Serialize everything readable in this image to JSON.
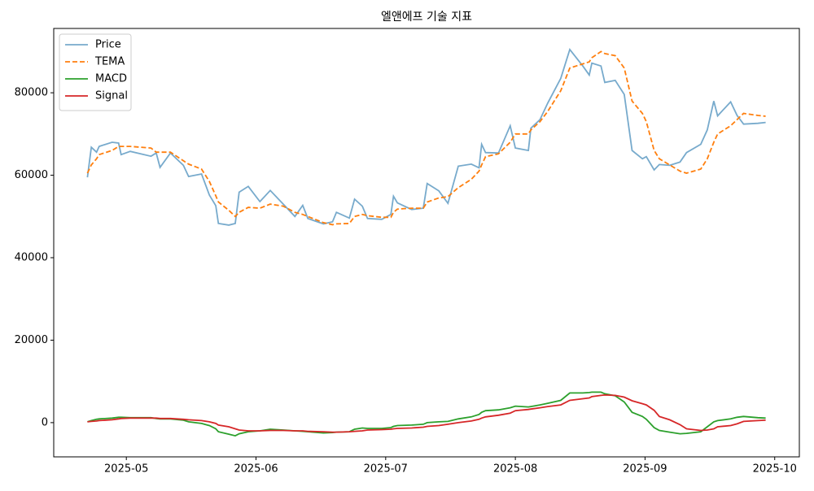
{
  "chart_data": {
    "type": "line",
    "title": "엘앤에프 기술 지표",
    "x": [
      4.7,
      4.73,
      4.77,
      4.79,
      4.89,
      4.94,
      4.96,
      5.03,
      5.19,
      5.23,
      5.26,
      5.34,
      5.44,
      5.48,
      5.58,
      5.64,
      5.69,
      5.71,
      5.79,
      5.84,
      5.87,
      5.94,
      6.03,
      6.11,
      6.21,
      6.3,
      6.36,
      6.4,
      6.52,
      6.59,
      6.62,
      6.72,
      6.76,
      6.82,
      6.86,
      6.97,
      7.04,
      7.06,
      7.09,
      7.2,
      7.29,
      7.32,
      7.41,
      7.48,
      7.56,
      7.66,
      7.72,
      7.74,
      7.77,
      7.87,
      7.96,
      8.0,
      8.1,
      8.12,
      8.19,
      8.25,
      8.35,
      8.42,
      8.52,
      8.57,
      8.59,
      8.66,
      8.69,
      8.77,
      8.84,
      8.9,
      8.98,
      9.01,
      9.07,
      9.11,
      9.19,
      9.27,
      9.32,
      9.43,
      9.48,
      9.53,
      9.56,
      9.66,
      9.71,
      9.76,
      9.87,
      9.93
    ],
    "series": [
      {
        "name": "Price",
        "color": "#77aacc",
        "linestyle": "solid",
        "values": [
          59500,
          66800,
          65600,
          67000,
          68000,
          67800,
          65000,
          65800,
          64600,
          65400,
          61900,
          65400,
          62400,
          59700,
          60300,
          55200,
          52600,
          48300,
          47900,
          48300,
          55900,
          57300,
          53600,
          56300,
          53000,
          50000,
          52700,
          49500,
          48200,
          48700,
          51000,
          49600,
          54200,
          52500,
          49500,
          49300,
          50500,
          54900,
          53300,
          51700,
          52000,
          58000,
          56200,
          53200,
          62200,
          62700,
          61800,
          67500,
          65500,
          65400,
          72000,
          66600,
          66000,
          71400,
          73500,
          77500,
          83500,
          90500,
          86500,
          84300,
          87200,
          86500,
          82500,
          83000,
          79600,
          66000,
          64000,
          64500,
          61300,
          62600,
          62400,
          63200,
          65500,
          67500,
          71000,
          78000,
          74400,
          77800,
          74500,
          72400,
          72600,
          72800
        ]
      },
      {
        "name": "TEMA",
        "color": "#ff7f0e",
        "linestyle": "dashed",
        "values": [
          60500,
          62500,
          64000,
          65000,
          66000,
          67000,
          67000,
          67000,
          66600,
          65600,
          65600,
          65600,
          63500,
          62700,
          61500,
          58500,
          55000,
          53500,
          51500,
          50000,
          51000,
          52200,
          52000,
          53000,
          52500,
          51000,
          50500,
          50000,
          48500,
          48000,
          48200,
          48300,
          50000,
          50500,
          50200,
          49800,
          49800,
          51000,
          51800,
          52000,
          52000,
          53500,
          54500,
          54800,
          57000,
          59000,
          61000,
          62500,
          64500,
          65200,
          68000,
          70000,
          70000,
          71000,
          73000,
          75500,
          80500,
          86000,
          87000,
          87500,
          88500,
          90000,
          89500,
          89000,
          86000,
          78000,
          75000,
          73000,
          66000,
          64000,
          62500,
          61000,
          60500,
          61500,
          64000,
          68000,
          70000,
          72000,
          73500,
          75000,
          74500,
          74300
        ]
      },
      {
        "name": "MACD",
        "color": "#2ca02c",
        "linestyle": "solid",
        "values": [
          200,
          500,
          800,
          900,
          1100,
          1300,
          1300,
          1200,
          1200,
          1000,
          900,
          900,
          600,
          200,
          -200,
          -700,
          -1500,
          -2200,
          -2800,
          -3200,
          -2700,
          -2200,
          -2000,
          -1600,
          -1800,
          -2000,
          -2100,
          -2200,
          -2500,
          -2400,
          -2300,
          -2200,
          -1600,
          -1300,
          -1400,
          -1400,
          -1200,
          -900,
          -700,
          -600,
          -400,
          0,
          200,
          300,
          900,
          1400,
          2000,
          2500,
          2900,
          3100,
          3600,
          4000,
          3800,
          3900,
          4300,
          4700,
          5400,
          7200,
          7200,
          7300,
          7400,
          7400,
          7000,
          6500,
          5000,
          2500,
          1500,
          800,
          -1200,
          -1900,
          -2300,
          -2700,
          -2600,
          -2200,
          -1000,
          200,
          500,
          900,
          1300,
          1500,
          1200,
          1100
        ]
      },
      {
        "name": "Signal",
        "color": "#d62728",
        "linestyle": "solid",
        "values": [
          200,
          300,
          400,
          500,
          700,
          900,
          1000,
          1100,
          1100,
          1100,
          1000,
          1000,
          800,
          700,
          500,
          200,
          -200,
          -600,
          -1000,
          -1500,
          -1800,
          -2000,
          -2000,
          -1900,
          -1900,
          -2000,
          -2000,
          -2100,
          -2200,
          -2300,
          -2300,
          -2200,
          -2100,
          -2000,
          -1800,
          -1700,
          -1600,
          -1500,
          -1400,
          -1300,
          -1100,
          -900,
          -700,
          -400,
          0,
          400,
          800,
          1100,
          1400,
          1800,
          2300,
          2900,
          3200,
          3300,
          3600,
          3900,
          4300,
          5400,
          5800,
          6000,
          6300,
          6600,
          6700,
          6600,
          6200,
          5300,
          4600,
          4300,
          3000,
          1500,
          700,
          -500,
          -1500,
          -1900,
          -1800,
          -1500,
          -1000,
          -700,
          -300,
          300,
          500,
          600
        ]
      }
    ],
    "xlim": [
      4.44,
      10.19
    ],
    "xticks": [
      {
        "value": 5,
        "label": "2025-05"
      },
      {
        "value": 6,
        "label": "2025-06"
      },
      {
        "value": 7,
        "label": "2025-07"
      },
      {
        "value": 8,
        "label": "2025-08"
      },
      {
        "value": 9,
        "label": "2025-09"
      },
      {
        "value": 10,
        "label": "2025-10"
      }
    ],
    "ylim": [
      -8300,
      95600
    ],
    "yticks": [
      0,
      20000,
      40000,
      60000,
      80000
    ],
    "grid": false,
    "legend": "upper left"
  }
}
